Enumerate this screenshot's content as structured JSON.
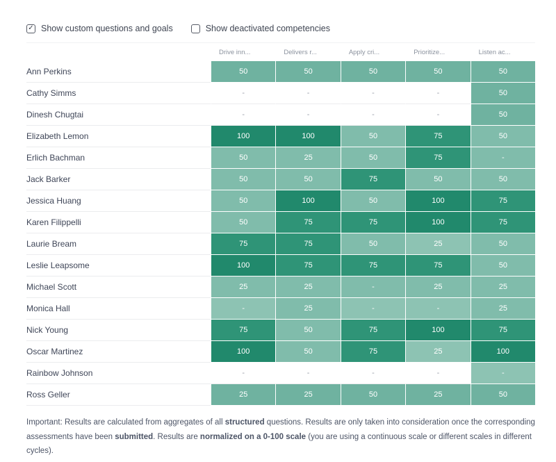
{
  "controls": {
    "checkboxes": [
      {
        "label": "Show custom questions and goals",
        "checked": true
      },
      {
        "label": "Show deactivated competencies",
        "checked": false
      }
    ]
  },
  "colors": {
    "shades": {
      "dark100": "#21896c",
      "dark75": "#2f9477",
      "mid": "#6fb2a0",
      "light": "#80bcab",
      "lighter": "#8dc3b3",
      "blank": "#ffffff"
    },
    "value_text": "#ffffff",
    "blank_dash_text": "#9ba1ab",
    "row_name_text": "#3e4557",
    "column_header_text": "#8b929e",
    "divider": "#ebecee"
  },
  "table": {
    "columns": [
      "Drive inn...",
      "Delivers r...",
      "Apply cri...",
      "Prioritize...",
      "Listen ac..."
    ],
    "rows": [
      {
        "name": "Ann Perkins",
        "cells": [
          {
            "v": "50",
            "s": "mid"
          },
          {
            "v": "50",
            "s": "mid"
          },
          {
            "v": "50",
            "s": "mid"
          },
          {
            "v": "50",
            "s": "mid"
          },
          {
            "v": "50",
            "s": "mid"
          }
        ]
      },
      {
        "name": "Cathy Simms",
        "cells": [
          {
            "v": "-",
            "s": "blank"
          },
          {
            "v": "-",
            "s": "blank"
          },
          {
            "v": "-",
            "s": "blank"
          },
          {
            "v": "-",
            "s": "blank"
          },
          {
            "v": "50",
            "s": "mid"
          }
        ]
      },
      {
        "name": "Dinesh Chugtai",
        "cells": [
          {
            "v": "-",
            "s": "blank"
          },
          {
            "v": "-",
            "s": "blank"
          },
          {
            "v": "-",
            "s": "blank"
          },
          {
            "v": "-",
            "s": "blank"
          },
          {
            "v": "50",
            "s": "mid"
          }
        ]
      },
      {
        "name": "Elizabeth Lemon",
        "cells": [
          {
            "v": "100",
            "s": "dark100"
          },
          {
            "v": "100",
            "s": "dark100"
          },
          {
            "v": "50",
            "s": "light"
          },
          {
            "v": "75",
            "s": "dark75"
          },
          {
            "v": "50",
            "s": "light"
          }
        ]
      },
      {
        "name": "Erlich Bachman",
        "cells": [
          {
            "v": "50",
            "s": "light"
          },
          {
            "v": "25",
            "s": "light"
          },
          {
            "v": "50",
            "s": "light"
          },
          {
            "v": "75",
            "s": "dark75"
          },
          {
            "v": "-",
            "s": "light"
          }
        ]
      },
      {
        "name": "Jack Barker",
        "cells": [
          {
            "v": "50",
            "s": "light"
          },
          {
            "v": "50",
            "s": "light"
          },
          {
            "v": "75",
            "s": "dark75"
          },
          {
            "v": "50",
            "s": "light"
          },
          {
            "v": "50",
            "s": "light"
          }
        ]
      },
      {
        "name": "Jessica Huang",
        "cells": [
          {
            "v": "50",
            "s": "light"
          },
          {
            "v": "100",
            "s": "dark100"
          },
          {
            "v": "50",
            "s": "light"
          },
          {
            "v": "100",
            "s": "dark100"
          },
          {
            "v": "75",
            "s": "dark75"
          }
        ]
      },
      {
        "name": "Karen Filippelli",
        "cells": [
          {
            "v": "50",
            "s": "light"
          },
          {
            "v": "75",
            "s": "dark75"
          },
          {
            "v": "75",
            "s": "dark75"
          },
          {
            "v": "100",
            "s": "dark100"
          },
          {
            "v": "75",
            "s": "dark75"
          }
        ]
      },
      {
        "name": "Laurie Bream",
        "cells": [
          {
            "v": "75",
            "s": "dark75"
          },
          {
            "v": "75",
            "s": "dark75"
          },
          {
            "v": "50",
            "s": "light"
          },
          {
            "v": "25",
            "s": "lighter"
          },
          {
            "v": "50",
            "s": "light"
          }
        ]
      },
      {
        "name": "Leslie Leapsome",
        "cells": [
          {
            "v": "100",
            "s": "dark100"
          },
          {
            "v": "75",
            "s": "dark75"
          },
          {
            "v": "75",
            "s": "dark75"
          },
          {
            "v": "75",
            "s": "dark75"
          },
          {
            "v": "50",
            "s": "light"
          }
        ]
      },
      {
        "name": "Michael Scott",
        "cells": [
          {
            "v": "25",
            "s": "light"
          },
          {
            "v": "25",
            "s": "light"
          },
          {
            "v": "-",
            "s": "light"
          },
          {
            "v": "25",
            "s": "light"
          },
          {
            "v": "25",
            "s": "light"
          }
        ]
      },
      {
        "name": "Monica Hall",
        "cells": [
          {
            "v": "-",
            "s": "lighter"
          },
          {
            "v": "25",
            "s": "light"
          },
          {
            "v": "-",
            "s": "lighter"
          },
          {
            "v": "-",
            "s": "lighter"
          },
          {
            "v": "25",
            "s": "light"
          }
        ]
      },
      {
        "name": "Nick Young",
        "cells": [
          {
            "v": "75",
            "s": "dark75"
          },
          {
            "v": "50",
            "s": "light"
          },
          {
            "v": "75",
            "s": "dark75"
          },
          {
            "v": "100",
            "s": "dark100"
          },
          {
            "v": "75",
            "s": "dark75"
          }
        ]
      },
      {
        "name": "Oscar Martinez",
        "cells": [
          {
            "v": "100",
            "s": "dark100"
          },
          {
            "v": "50",
            "s": "light"
          },
          {
            "v": "75",
            "s": "dark75"
          },
          {
            "v": "25",
            "s": "lighter"
          },
          {
            "v": "100",
            "s": "dark100"
          }
        ]
      },
      {
        "name": "Rainbow Johnson",
        "cells": [
          {
            "v": "-",
            "s": "blank"
          },
          {
            "v": "-",
            "s": "blank"
          },
          {
            "v": "-",
            "s": "blank"
          },
          {
            "v": "-",
            "s": "blank"
          },
          {
            "v": "-",
            "s": "lighter"
          }
        ]
      },
      {
        "name": "Ross Geller",
        "cells": [
          {
            "v": "25",
            "s": "mid"
          },
          {
            "v": "25",
            "s": "mid"
          },
          {
            "v": "50",
            "s": "mid"
          },
          {
            "v": "25",
            "s": "mid"
          },
          {
            "v": "50",
            "s": "mid"
          }
        ]
      }
    ]
  },
  "footer": {
    "segments": [
      {
        "text": "Important: Results are calculated from aggregates of all ",
        "bold": false
      },
      {
        "text": "structured",
        "bold": true
      },
      {
        "text": " questions. Results are only taken into consideration once the corresponding assessments have been ",
        "bold": false
      },
      {
        "text": "submitted",
        "bold": true
      },
      {
        "text": ". Results are ",
        "bold": false
      },
      {
        "text": "normalized on a 0-100 scale",
        "bold": true
      },
      {
        "text": " (you are using a continuous scale or different scales in different cycles).",
        "bold": false
      }
    ]
  }
}
